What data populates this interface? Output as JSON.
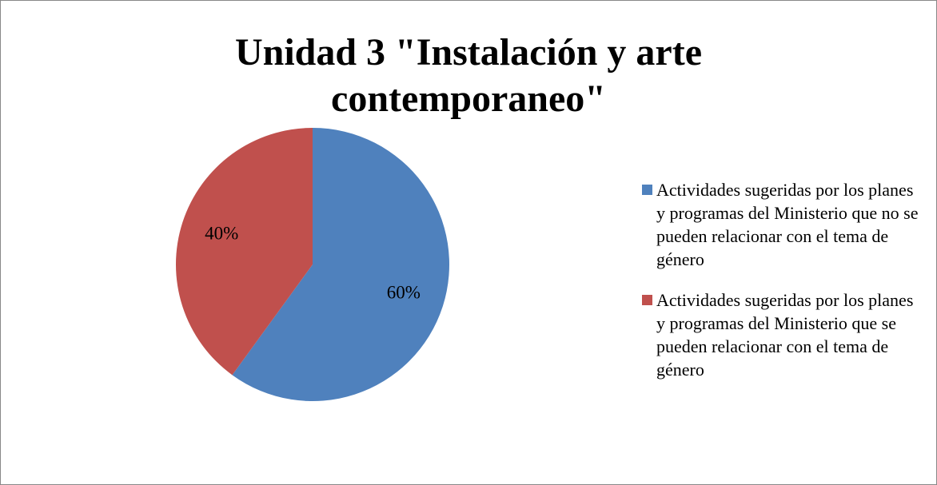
{
  "chart_data": {
    "type": "pie",
    "title": "Unidad 3 \"Instalación y arte contemporaneo\"",
    "categories": [
      "Actividades sugeridas por los planes y programas del Ministerio que no se pueden relacionar con el tema de género",
      "Actividades sugeridas por los planes y programas del Ministerio que se pueden relacionar con el tema de género"
    ],
    "values": [
      60,
      40
    ],
    "value_labels": [
      "60%",
      "40%"
    ],
    "colors": [
      "#4f81bd",
      "#c0504d"
    ],
    "legend": "right"
  }
}
